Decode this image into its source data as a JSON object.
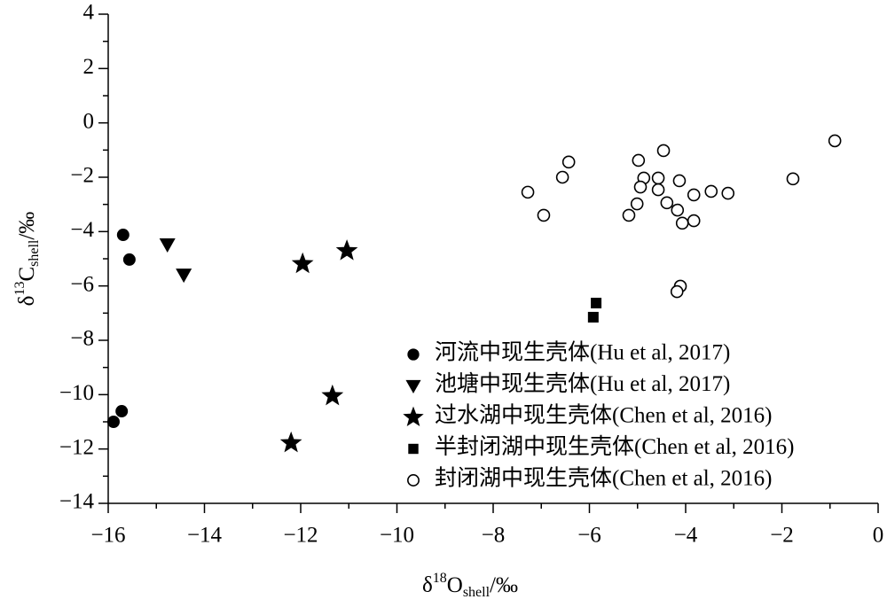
{
  "chart_data": {
    "type": "scatter",
    "xlabel": [
      "δ",
      "18",
      "O",
      "shell",
      "/‰"
    ],
    "ylabel": [
      "δ",
      "13",
      "C",
      "shell",
      "/‰"
    ],
    "xlim": [
      -16,
      0
    ],
    "ylim": [
      -14,
      4
    ],
    "xticks": [
      {
        "value": -16,
        "label": "−16"
      },
      {
        "value": -14,
        "label": "−14"
      },
      {
        "value": -12,
        "label": "−12"
      },
      {
        "value": -10,
        "label": "−10"
      },
      {
        "value": -8,
        "label": "−8"
      },
      {
        "value": -6,
        "label": "−6"
      },
      {
        "value": -4,
        "label": "−4"
      },
      {
        "value": -2,
        "label": "−2"
      },
      0
    ],
    "yticks": [
      {
        "value": -14,
        "label": "−14"
      },
      {
        "value": -12,
        "label": "−12"
      },
      {
        "value": -10,
        "label": "−10"
      },
      {
        "value": -8,
        "label": "−8"
      },
      {
        "value": -6,
        "label": "−6"
      },
      {
        "value": -4,
        "label": "−4"
      },
      {
        "value": -2,
        "label": "−2"
      },
      0,
      2,
      4
    ],
    "legend": "lower right",
    "series": [
      {
        "name": "河流中现生壳体(Hu et al, 2017)",
        "color": "#000000",
        "marker": "circle",
        "x": [
          -15.69,
          -15.56,
          -15.72,
          -15.89
        ],
        "values": [
          -4.12,
          -5.03,
          -10.61,
          -11.0
        ]
      },
      {
        "name": "池塘中现生壳体(Hu et al, 2017)",
        "color": "#000000",
        "marker": "triangle-down",
        "x": [
          -14.77,
          -14.43
        ],
        "values": [
          -4.48,
          -5.59
        ]
      },
      {
        "name": "过水湖中现生壳体(Chen et al, 2016)",
        "color": "#000000",
        "marker": "star",
        "x": [
          -11.96,
          -11.04,
          -11.34,
          -12.2
        ],
        "values": [
          -5.19,
          -4.71,
          -10.05,
          -11.78
        ]
      },
      {
        "name": "半封闭湖中现生壳体(Chen et al, 2016)",
        "color": "#000000",
        "marker": "square",
        "x": [
          -5.86,
          -5.92
        ],
        "values": [
          -6.63,
          -7.15
        ]
      },
      {
        "name": "封闭湖中现生壳体(Chen et al, 2016)",
        "color": "#000000",
        "marker": "circle-open",
        "x": [
          -7.28,
          -6.95,
          -6.56,
          -6.43,
          -4.98,
          -4.87,
          -4.94,
          -5.01,
          -5.18,
          -4.46,
          -4.57,
          -4.57,
          -4.39,
          -4.17,
          -4.13,
          -4.07,
          -3.83,
          -3.83,
          -3.47,
          -3.12,
          -1.77,
          -0.9,
          -4.11,
          -4.18
        ],
        "values": [
          -2.55,
          -3.4,
          -2.0,
          -1.44,
          -1.38,
          -2.03,
          -2.36,
          -2.98,
          -3.4,
          -1.02,
          -2.03,
          -2.46,
          -2.94,
          -3.21,
          -2.13,
          -3.69,
          -3.6,
          -2.65,
          -2.52,
          -2.59,
          -2.06,
          -0.66,
          -6.01,
          -6.21
        ]
      }
    ]
  }
}
